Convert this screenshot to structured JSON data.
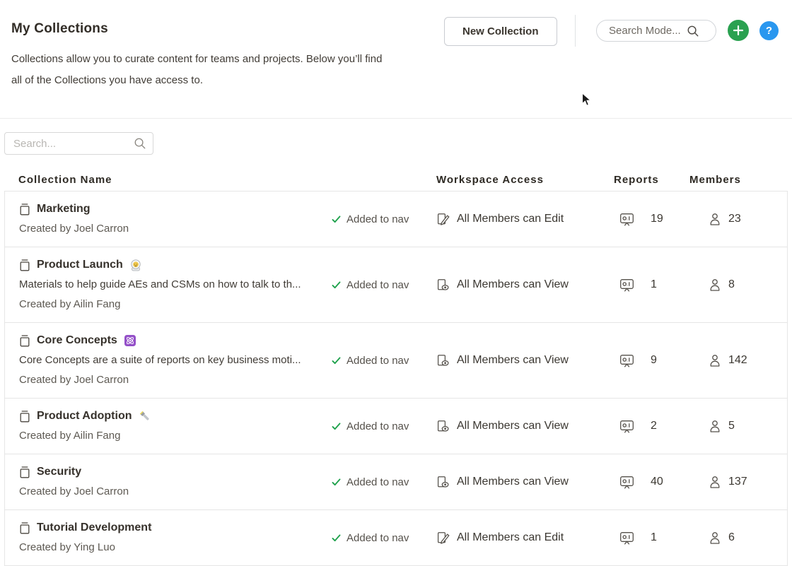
{
  "page": {
    "title": "My Collections",
    "description_lines": [
      "Collections allow you to curate content for teams and projects. Below you’ll find",
      "all of the Collections you have access to."
    ]
  },
  "header": {
    "new_collection_label": "New Collection",
    "global_search_placeholder": "Search Mode...",
    "add_label": "+",
    "help_label": "?"
  },
  "filter": {
    "search_placeholder": "Search..."
  },
  "table": {
    "columns": [
      "Collection Name",
      "Workspace Access",
      "Reports",
      "Members"
    ],
    "nav_label": "Added to nav",
    "rows": [
      {
        "name": "Marketing",
        "emoji": "",
        "emoji_name": "",
        "description": "",
        "created_by": "Created by Joel Carron",
        "added_to_nav": true,
        "access": "All Members can Edit",
        "access_type": "edit",
        "reports": "19",
        "members": "23"
      },
      {
        "name": "Product Launch",
        "emoji": "🧑‍🚀",
        "emoji_name": "astronaut-emoji",
        "description": "Materials to help guide AEs and CSMs on how to talk to th...",
        "created_by": "Created by Ailin Fang",
        "added_to_nav": true,
        "access": "All Members can View",
        "access_type": "view",
        "reports": "1",
        "members": "8"
      },
      {
        "name": "Core Concepts",
        "emoji": "⚛️",
        "emoji_name": "atom-emoji",
        "description": "Core Concepts are a suite of reports on key business moti...",
        "created_by": "Created by Joel Carron",
        "added_to_nav": true,
        "access": "All Members can View",
        "access_type": "view",
        "reports": "9",
        "members": "142"
      },
      {
        "name": "Product Adoption",
        "emoji": "🔦",
        "emoji_name": "flashlight-emoji",
        "description": "",
        "created_by": "Created by Ailin Fang",
        "added_to_nav": true,
        "access": "All Members can View",
        "access_type": "view",
        "reports": "2",
        "members": "5"
      },
      {
        "name": "Security",
        "emoji": "",
        "emoji_name": "",
        "description": "",
        "created_by": "Created by Joel Carron",
        "added_to_nav": true,
        "access": "All Members can View",
        "access_type": "view",
        "reports": "40",
        "members": "137"
      },
      {
        "name": "Tutorial Development",
        "emoji": "",
        "emoji_name": "",
        "description": "",
        "created_by": "Created by Ying Luo",
        "added_to_nav": true,
        "access": "All Members can Edit",
        "access_type": "edit",
        "reports": "1",
        "members": "6"
      }
    ]
  },
  "colors": {
    "accent_green": "#2aa150",
    "accent_blue": "#2a97ef",
    "check_green": "#1da14b"
  }
}
